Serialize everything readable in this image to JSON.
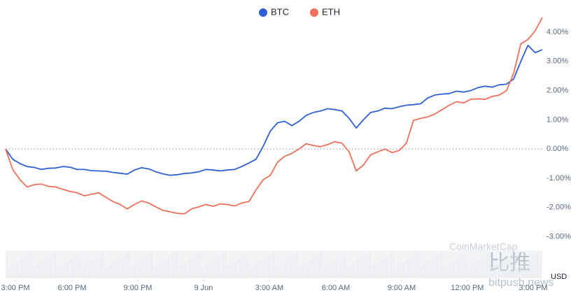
{
  "chart_data": {
    "type": "line",
    "series": [
      {
        "name": "BTC",
        "color": "#2f5fd6",
        "values": [
          0,
          -0.35,
          -0.5,
          -0.6,
          -0.63,
          -0.7,
          -0.66,
          -0.65,
          -0.6,
          -0.62,
          -0.7,
          -0.7,
          -0.74,
          -0.75,
          -0.76,
          -0.8,
          -0.83,
          -0.86,
          -0.72,
          -0.64,
          -0.68,
          -0.78,
          -0.85,
          -0.9,
          -0.88,
          -0.84,
          -0.82,
          -0.78,
          -0.7,
          -0.72,
          -0.75,
          -0.72,
          -0.7,
          -0.6,
          -0.48,
          -0.35,
          0.1,
          0.62,
          0.9,
          0.95,
          0.8,
          0.95,
          1.15,
          1.25,
          1.3,
          1.38,
          1.35,
          1.3,
          1.05,
          0.72,
          1.0,
          1.25,
          1.3,
          1.4,
          1.38,
          1.45,
          1.5,
          1.52,
          1.55,
          1.75,
          1.85,
          1.88,
          1.9,
          1.98,
          1.95,
          2.0,
          2.1,
          2.15,
          2.12,
          2.2,
          2.22,
          2.4,
          3.0,
          3.55,
          3.3,
          3.4
        ]
      },
      {
        "name": "ETH",
        "color": "#f0705a",
        "values": [
          0,
          -0.7,
          -1.05,
          -1.3,
          -1.22,
          -1.2,
          -1.28,
          -1.3,
          -1.38,
          -1.45,
          -1.5,
          -1.6,
          -1.55,
          -1.5,
          -1.65,
          -1.8,
          -1.9,
          -2.05,
          -1.9,
          -1.78,
          -1.85,
          -1.98,
          -2.1,
          -2.15,
          -2.2,
          -2.22,
          -2.05,
          -1.98,
          -1.9,
          -1.96,
          -1.88,
          -1.9,
          -1.95,
          -1.85,
          -1.8,
          -1.4,
          -1.05,
          -0.9,
          -0.45,
          -0.25,
          -0.15,
          0.0,
          0.18,
          0.12,
          0.08,
          0.15,
          0.25,
          0.2,
          -0.1,
          -0.75,
          -0.55,
          -0.2,
          -0.1,
          0.0,
          -0.12,
          -0.05,
          0.2,
          0.98,
          1.05,
          1.1,
          1.2,
          1.35,
          1.5,
          1.62,
          1.58,
          1.7,
          1.72,
          1.7,
          1.8,
          1.85,
          2.0,
          2.6,
          3.6,
          3.75,
          4.05,
          4.5
        ]
      }
    ],
    "xlim": [
      0,
      75
    ],
    "xticks": [
      {
        "value": 1.37,
        "label": "3:00 PM"
      },
      {
        "value": 9.29,
        "label": "6:00 PM"
      },
      {
        "value": 18.48,
        "label": "9:00 PM"
      },
      {
        "value": 27.67,
        "label": "9 Jun"
      },
      {
        "value": 36.86,
        "label": "3:00 AM"
      },
      {
        "value": 46.15,
        "label": "6:00 AM"
      },
      {
        "value": 55.34,
        "label": "9:00 AM"
      },
      {
        "value": 64.53,
        "label": "12:00 PM"
      },
      {
        "value": 73.73,
        "label": "3:00 PM"
      }
    ],
    "ylim": [
      -3.3,
      4.6
    ],
    "yticks": [
      {
        "value": 4,
        "label": "4.00%"
      },
      {
        "value": 3,
        "label": "3.00%"
      },
      {
        "value": 2,
        "label": "2.00%"
      },
      {
        "value": 1,
        "label": "1.00%"
      },
      {
        "value": 0,
        "label": "0.00%"
      },
      {
        "value": -1,
        "label": "-1.00%"
      },
      {
        "value": -2,
        "label": "-2.00%"
      },
      {
        "value": -3,
        "label": "-3.00%"
      }
    ],
    "zero_line": true,
    "y_unit": "USD",
    "watermarks": [
      "CoinMarketCap",
      "比推",
      "bitpush.news"
    ]
  }
}
